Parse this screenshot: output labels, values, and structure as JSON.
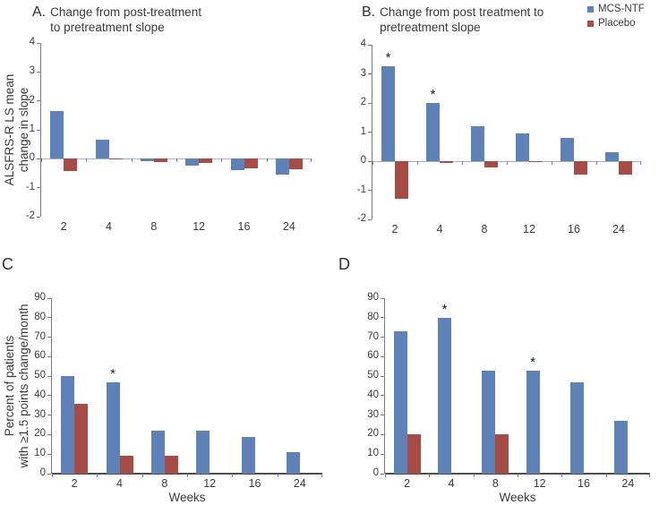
{
  "figure": {
    "background": "#ffffff",
    "text_color": "#3a3a3a",
    "accent_blue": "#5e81b7",
    "accent_red": "#a64c45",
    "zero_line_color": "#a3b2d1",
    "sig_marker": "*"
  },
  "legend": {
    "items": [
      {
        "label": "MCS-NTF",
        "color": "#5e81b7"
      },
      {
        "label": "Placebo",
        "color": "#a64c45"
      }
    ]
  },
  "chart_data": [
    {
      "id": "A",
      "type": "bar",
      "panel_letter": "A.",
      "title_lines": [
        "Change from post-treatment",
        "to pretreatment slope"
      ],
      "ylabel_lines": [
        "ALSFRS-R LS mean",
        "change in slope"
      ],
      "xlabel": "",
      "ylim": [
        -2,
        4
      ],
      "yticks": [
        4,
        3,
        2,
        1,
        0,
        -1,
        -2
      ],
      "categories": [
        "2",
        "4",
        "8",
        "12",
        "16",
        "24"
      ],
      "series": [
        {
          "name": "MCS-NTF",
          "color": "#5e81b7",
          "values": [
            1.65,
            0.65,
            -0.08,
            -0.25,
            -0.38,
            -0.55
          ]
        },
        {
          "name": "Placebo",
          "color": "#a64c45",
          "values": [
            -0.42,
            -0.03,
            -0.12,
            -0.15,
            -0.33,
            -0.37
          ]
        }
      ],
      "significant_categories": [],
      "grid": false,
      "legend_position": "none"
    },
    {
      "id": "B",
      "type": "bar",
      "panel_letter": "B.",
      "title_lines": [
        "Change from post treatment to",
        "pretreatment slope"
      ],
      "ylabel_lines": [],
      "xlabel": "",
      "ylim": [
        -2,
        4
      ],
      "yticks": [
        4,
        3,
        2,
        1,
        0,
        -1,
        -2
      ],
      "categories": [
        "2",
        "4",
        "8",
        "12",
        "16",
        "24"
      ],
      "series": [
        {
          "name": "MCS-NTF",
          "color": "#5e81b7",
          "values": [
            3.25,
            2.0,
            1.2,
            0.95,
            0.8,
            0.3
          ]
        },
        {
          "name": "Placebo",
          "color": "#a64c45",
          "values": [
            -1.3,
            -0.07,
            -0.22,
            -0.04,
            -0.47,
            -0.45
          ]
        }
      ],
      "significant_categories": [
        "2",
        "4"
      ],
      "grid": false,
      "legend_position": "top-right"
    },
    {
      "id": "C",
      "type": "bar",
      "panel_letter": "C",
      "title_lines": [],
      "ylabel_lines": [
        "Percent of patients",
        "with ≥1.5 points change/month"
      ],
      "xlabel": "Weeks",
      "ylim": [
        0,
        90
      ],
      "yticks": [
        90,
        80,
        70,
        60,
        50,
        40,
        30,
        20,
        10,
        0
      ],
      "categories": [
        "2",
        "4",
        "8",
        "12",
        "16",
        "24"
      ],
      "series": [
        {
          "name": "MCS-NTF",
          "color": "#5e81b7",
          "values": [
            50,
            47,
            22,
            22,
            19,
            11
          ]
        },
        {
          "name": "Placebo",
          "color": "#a64c45",
          "values": [
            36,
            9,
            9,
            0,
            0,
            0
          ]
        }
      ],
      "significant_categories": [
        "4"
      ],
      "grid": false,
      "legend_position": "none"
    },
    {
      "id": "D",
      "type": "bar",
      "panel_letter": "D",
      "title_lines": [],
      "ylabel_lines": [],
      "xlabel": "Weeks",
      "ylim": [
        0,
        90
      ],
      "yticks": [
        90,
        80,
        70,
        60,
        50,
        40,
        30,
        20,
        10,
        0
      ],
      "categories": [
        "2",
        "4",
        "8",
        "12",
        "16",
        "24"
      ],
      "series": [
        {
          "name": "MCS-NTF",
          "color": "#5e81b7",
          "values": [
            73,
            80,
            53,
            53,
            47,
            27
          ]
        },
        {
          "name": "Placebo",
          "color": "#a64c45",
          "values": [
            20,
            0,
            20,
            0,
            0,
            0
          ]
        }
      ],
      "significant_categories": [
        "4",
        "12"
      ],
      "grid": false,
      "legend_position": "none"
    }
  ]
}
